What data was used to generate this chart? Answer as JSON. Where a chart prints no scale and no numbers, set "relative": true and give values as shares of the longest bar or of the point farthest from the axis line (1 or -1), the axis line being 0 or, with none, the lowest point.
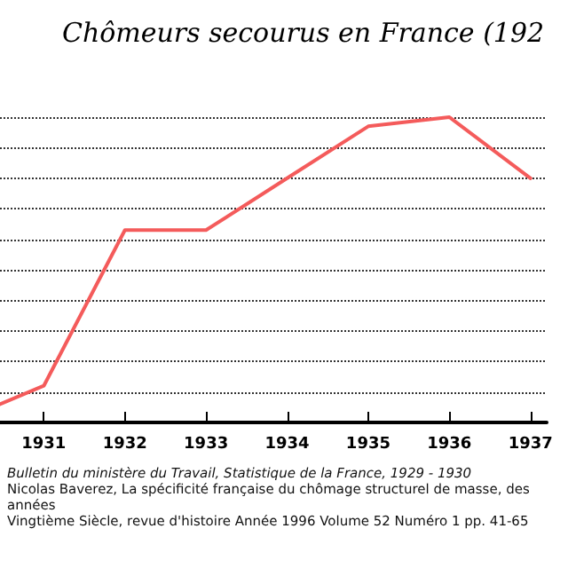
{
  "chart_data": {
    "type": "line",
    "title": "Chômeurs secourus en France (192",
    "relative": true,
    "x": [
      1930.46,
      1931,
      1932,
      1933,
      1934,
      1935,
      1936,
      1937
    ],
    "series": [
      {
        "color": "#f45b5b",
        "values": [
          0.06,
          0.12,
          0.63,
          0.63,
          0.8,
          0.97,
          1.0,
          0.8
        ]
      }
    ],
    "xlim": [
      1930.46,
      1937.2
    ],
    "xticks": [
      1931,
      1932,
      1933,
      1934,
      1935,
      1936,
      1937
    ],
    "grid": "y",
    "marker": "none",
    "line_style": "solid",
    "tick_labels": "x",
    "annotations": [
      "Bulletin du ministère du Travail, Statistique de la France, 1929 - 1930",
      "Nicolas Baverez, La spécificité française du chômage structurel de masse, des années",
      "Vingtième Siècle, revue d'histoire  Année 1996  Volume 52  Numéro 1  pp. 41-65"
    ]
  }
}
